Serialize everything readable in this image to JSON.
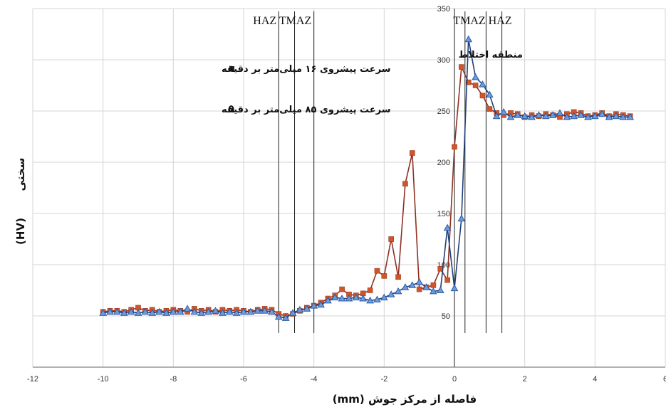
{
  "chart_data": {
    "type": "line",
    "title": "",
    "xlabel": "فاصله از مرکز جوش  (mm)",
    "ylabel_text": "سختی",
    "ylabel_unit": "(HV)",
    "xlim": [
      -12,
      6
    ],
    "ylim": [
      0,
      350
    ],
    "x_ticks": [
      -12,
      -10,
      -8,
      -6,
      -4,
      -2,
      0,
      2,
      4,
      6
    ],
    "y_ticks": [
      0,
      50,
      100,
      150,
      200,
      250,
      300,
      350
    ],
    "y_tick_labels_shown": [
      50,
      100,
      150,
      200,
      250,
      300,
      350
    ],
    "grid": true,
    "legend_position": "top-left",
    "zone_labels": [
      {
        "text": "HAZ TMAZ",
        "x": -4.9
      },
      {
        "text": "TMAZ  HAZ",
        "x": 0.8
      }
    ],
    "zone_lines_x": [
      -5.0,
      -4.55,
      -4.0,
      0.3,
      0.9,
      1.35
    ],
    "annotation": {
      "text": "منطقه اختلاط",
      "x": -1.0,
      "y": 305
    },
    "series": [
      {
        "name": "سرعت پیشروی ۱۶ میلی‌متر بر دقیقه",
        "marker": "square",
        "color": "#d2552a",
        "x": [
          -10,
          -9.8,
          -9.6,
          -9.4,
          -9.2,
          -9.0,
          -8.8,
          -8.6,
          -8.4,
          -8.2,
          -8.0,
          -7.8,
          -7.6,
          -7.4,
          -7.2,
          -7.0,
          -6.8,
          -6.6,
          -6.4,
          -6.2,
          -6.0,
          -5.8,
          -5.6,
          -5.4,
          -5.2,
          -5.0,
          -4.8,
          -4.6,
          -4.4,
          -4.2,
          -4.0,
          -3.8,
          -3.6,
          -3.4,
          -3.2,
          -3.0,
          -2.8,
          -2.6,
          -2.4,
          -2.2,
          -2.0,
          -1.8,
          -1.6,
          -1.4,
          -1.2,
          -1.0,
          -0.8,
          -0.6,
          -0.4,
          -0.2,
          0.0,
          0.2,
          0.4,
          0.6,
          0.8,
          1.0,
          1.2,
          1.4,
          1.6,
          1.8,
          2.0,
          2.2,
          2.4,
          2.6,
          2.8,
          3.0,
          3.2,
          3.4,
          3.6,
          3.8,
          4.0,
          4.2,
          4.4,
          4.6,
          4.8,
          5.0
        ],
        "y": [
          54,
          55,
          55,
          54,
          56,
          58,
          55,
          56,
          54,
          55,
          56,
          55,
          54,
          57,
          55,
          56,
          54,
          56,
          55,
          56,
          55,
          54,
          56,
          57,
          56,
          52,
          50,
          52,
          55,
          58,
          60,
          63,
          67,
          70,
          76,
          71,
          70,
          72,
          75,
          94,
          89,
          125,
          88,
          179,
          209,
          76,
          78,
          80,
          96,
          85,
          215,
          293,
          278,
          275,
          265,
          252,
          248,
          246,
          248,
          247,
          244,
          246,
          245,
          247,
          246,
          244,
          247,
          249,
          248,
          245,
          246,
          248,
          245,
          247,
          246,
          245
        ]
      },
      {
        "name": "سرعت پیشروی ۸۵ میلی‌متر بر دقیقه",
        "marker": "triangle",
        "color": "#2a5aa8",
        "x": [
          -10,
          -9.8,
          -9.6,
          -9.4,
          -9.2,
          -9.0,
          -8.8,
          -8.6,
          -8.4,
          -8.2,
          -8.0,
          -7.8,
          -7.6,
          -7.4,
          -7.2,
          -7.0,
          -6.8,
          -6.6,
          -6.4,
          -6.2,
          -6.0,
          -5.8,
          -5.6,
          -5.4,
          -5.2,
          -5.0,
          -4.8,
          -4.6,
          -4.4,
          -4.2,
          -4.0,
          -3.8,
          -3.6,
          -3.4,
          -3.2,
          -3.0,
          -2.8,
          -2.6,
          -2.4,
          -2.2,
          -2.0,
          -1.8,
          -1.6,
          -1.4,
          -1.2,
          -1.0,
          -0.8,
          -0.6,
          -0.4,
          -0.2,
          0.0,
          0.2,
          0.4,
          0.6,
          0.8,
          1.0,
          1.2,
          1.4,
          1.6,
          1.8,
          2.0,
          2.2,
          2.4,
          2.6,
          2.8,
          3.0,
          3.2,
          3.4,
          3.6,
          3.8,
          4.0,
          4.2,
          4.4,
          4.6,
          4.8,
          5.0
        ],
        "y": [
          53,
          54,
          54,
          53,
          54,
          53,
          54,
          53,
          54,
          53,
          54,
          54,
          57,
          54,
          53,
          54,
          55,
          53,
          54,
          53,
          54,
          54,
          55,
          55,
          54,
          49,
          48,
          53,
          56,
          57,
          60,
          61,
          65,
          68,
          67,
          67,
          68,
          67,
          65,
          66,
          68,
          71,
          74,
          78,
          80,
          83,
          78,
          74,
          75,
          136,
          77,
          145,
          320,
          283,
          276,
          266,
          245,
          249,
          244,
          246,
          245,
          244,
          246,
          245,
          246,
          248,
          244,
          245,
          246,
          244,
          245,
          247,
          244,
          245,
          244,
          244
        ]
      }
    ]
  }
}
